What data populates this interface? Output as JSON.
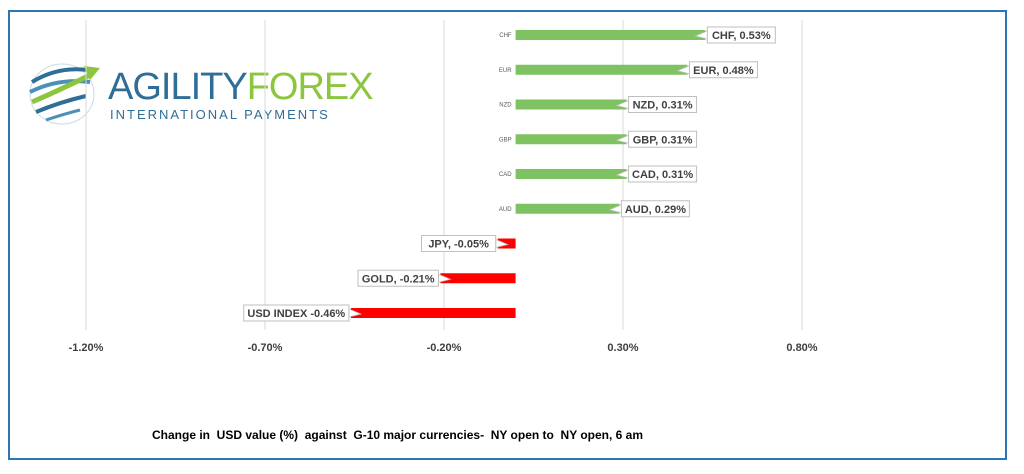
{
  "logo": {
    "word1": "AGILITY",
    "word2": "FOREX",
    "tagline": "INTERNATIONAL PAYMENTS"
  },
  "caption": "Change in  USD value (%)  against  G-10 major currencies-  NY open to  NY open, 6 am",
  "colors": {
    "positive": "#7ec262",
    "negative": "#ff0000",
    "frame": "#2e75b6",
    "gridline": "#d9d9d9"
  },
  "chart_data": {
    "type": "bar",
    "orientation": "horizontal",
    "categories": [
      "CHF",
      "EUR",
      "NZD",
      "GBP",
      "CAD",
      "AUD",
      "JPY",
      "GOLD",
      "USD INDEX"
    ],
    "values": [
      0.53,
      0.48,
      0.31,
      0.31,
      0.31,
      0.29,
      -0.05,
      -0.21,
      -0.46
    ],
    "data_labels": [
      "CHF, 0.53%",
      "EUR, 0.48%",
      "NZD, 0.31%",
      "GBP, 0.31%",
      "CAD, 0.31%",
      "AUD, 0.29%",
      "JPY, -0.05%",
      "GOLD, -0.21%",
      "USD INDEX -0.46%"
    ],
    "category_axis_labels": [
      "CHF",
      "EUR",
      "NZD",
      "GBP",
      "CAD",
      "AUD",
      "",
      "",
      ""
    ],
    "xticks": [
      -1.2,
      -0.7,
      -0.2,
      0.3,
      0.8
    ],
    "xtick_labels": [
      "-1.20%",
      "-0.70%",
      "-0.20%",
      "0.30%",
      "0.80%"
    ],
    "xlim": [
      -1.2,
      0.8
    ],
    "grid": "vertical",
    "legend": "none"
  }
}
